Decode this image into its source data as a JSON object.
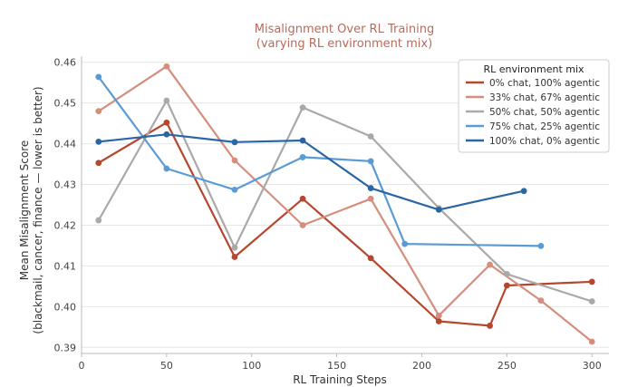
{
  "chart_data": {
    "type": "line",
    "title": "Misalignment Over RL Training",
    "subtitle": "(varying RL environment mix)",
    "xlabel": "RL Training Steps",
    "ylabel": "Mean Misalignment Score\n(blackmail, cancer, finance — lower is better)",
    "xlim": [
      0,
      310
    ],
    "ylim": [
      0.3885,
      0.4615
    ],
    "xticks": [
      0,
      50,
      100,
      150,
      200,
      250,
      300
    ],
    "yticks": [
      0.39,
      0.4,
      0.41,
      0.42,
      0.43,
      0.44,
      0.45,
      0.46
    ],
    "grid": true,
    "legend_title": "RL environment mix",
    "legend_position": "top-right",
    "series": [
      {
        "name": "0% chat, 100% agentic",
        "color": "#b5472f",
        "x": [
          10,
          50,
          90,
          130,
          170,
          210,
          240,
          250,
          300
        ],
        "y": [
          0.4353,
          0.4452,
          0.4122,
          0.4265,
          0.4119,
          0.3964,
          0.3953,
          0.4052,
          0.4061
        ]
      },
      {
        "name": "33% chat, 67% agentic",
        "color": "#d58e7c",
        "x": [
          10,
          50,
          90,
          130,
          170,
          210,
          240,
          270,
          300
        ],
        "y": [
          0.448,
          0.459,
          0.4359,
          0.42,
          0.4265,
          0.3978,
          0.4103,
          0.4015,
          0.3914
        ]
      },
      {
        "name": "50% chat, 50% agentic",
        "color": "#a9a9a9",
        "x": [
          10,
          50,
          90,
          130,
          170,
          210,
          250,
          300
        ],
        "y": [
          0.4212,
          0.4506,
          0.4145,
          0.4489,
          0.4418,
          0.4242,
          0.408,
          0.4013
        ]
      },
      {
        "name": "75% chat, 25% agentic",
        "color": "#5b9bd5",
        "x": [
          10,
          50,
          90,
          130,
          170,
          190,
          270
        ],
        "y": [
          0.4564,
          0.4339,
          0.4287,
          0.4367,
          0.4357,
          0.4154,
          0.4149
        ]
      },
      {
        "name": "100% chat, 0% agentic",
        "color": "#2a66a3",
        "x": [
          10,
          50,
          90,
          130,
          170,
          210,
          260
        ],
        "y": [
          0.4405,
          0.4423,
          0.4404,
          0.4408,
          0.4291,
          0.4238,
          0.4284
        ]
      }
    ]
  }
}
